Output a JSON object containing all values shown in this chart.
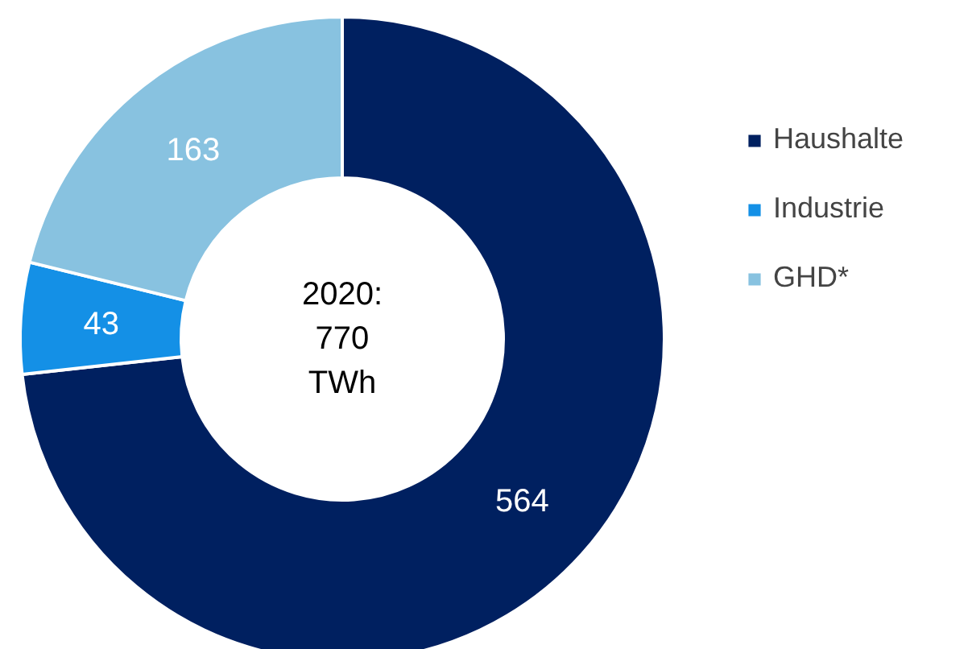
{
  "chart_data": {
    "type": "donut",
    "categories": [
      "Haushalte",
      "Industrie",
      "GHD*"
    ],
    "values": [
      564,
      43,
      163
    ],
    "colors": [
      "#002060",
      "#1490e6",
      "#88c2e0"
    ],
    "data_labels": true,
    "legend": "right",
    "annotations": [
      "2020:\n770\nTWh"
    ]
  }
}
